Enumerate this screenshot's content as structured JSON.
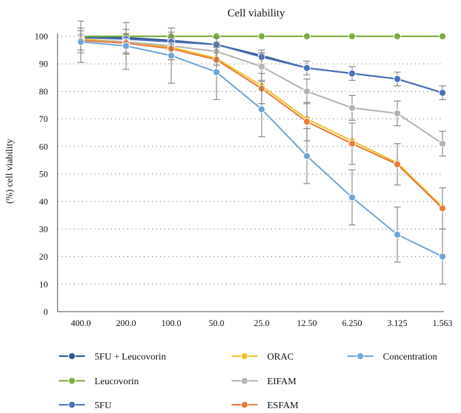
{
  "chart_data": {
    "type": "line",
    "title": "Cell viability",
    "xlabel": "",
    "ylabel": "(%) cell viability",
    "categories": [
      "400.0",
      "200.0",
      "100.0",
      "50.0",
      "25.0",
      "12.50",
      "6.250",
      "3.125",
      "1.563"
    ],
    "ylim": [
      0,
      100
    ],
    "yticks": [
      0,
      10,
      20,
      30,
      40,
      50,
      60,
      70,
      80,
      90,
      100
    ],
    "grid": "horizontal-dotted",
    "legend": {
      "placement": "bottom",
      "columns": 3
    },
    "series": [
      {
        "name": "5FU + Leucovorin",
        "color": "#2E5A8A",
        "values": [
          100,
          99.5,
          98.5,
          97,
          93,
          88.5,
          86.5,
          84.5,
          79.5
        ],
        "error": [
          null,
          null,
          null,
          null,
          null,
          null,
          null,
          null,
          null
        ]
      },
      {
        "name": "Leucovorin",
        "color": "#7AAD3E",
        "values": [
          100,
          100,
          100,
          100,
          100,
          100,
          100,
          100,
          100
        ],
        "error": [
          null,
          null,
          null,
          null,
          null,
          null,
          null,
          null,
          null
        ]
      },
      {
        "name": "5FU",
        "color": "#4A6FBE",
        "values": [
          99.5,
          99,
          98,
          97,
          92.5,
          88.5,
          86.5,
          84.5,
          79.5
        ],
        "error": [
          1,
          1,
          1,
          1,
          2.5,
          2.5,
          2.5,
          2.5,
          2.5
        ]
      },
      {
        "name": "ORAC",
        "color": "#F2C02E",
        "values": [
          99,
          98,
          96,
          92,
          82,
          70,
          62,
          54,
          38
        ],
        "error": [
          null,
          null,
          null,
          null,
          null,
          null,
          null,
          null,
          null
        ]
      },
      {
        "name": "EIFAM",
        "color": "#B4B4B4",
        "values": [
          98.5,
          98,
          96.5,
          94.5,
          89,
          80,
          74,
          72,
          61
        ],
        "error": [
          4.5,
          4.5,
          5,
          5,
          5,
          4.5,
          4.5,
          4.5,
          4.5
        ]
      },
      {
        "name": "ESFAM",
        "color": "#E87C3B",
        "values": [
          98.5,
          97.5,
          95.5,
          91.5,
          81,
          69,
          61,
          53.5,
          37.5
        ],
        "error": [
          3.5,
          3.5,
          4,
          4.5,
          5.5,
          7,
          7.5,
          7.5,
          7.5
        ]
      },
      {
        "name": "Concentration",
        "color": "#6FA5D8",
        "values": [
          98,
          96.5,
          93,
          87,
          73.5,
          56.5,
          41.5,
          28,
          20
        ],
        "error": [
          7.5,
          8.5,
          10,
          10,
          10,
          10,
          10,
          10,
          10
        ]
      }
    ]
  }
}
